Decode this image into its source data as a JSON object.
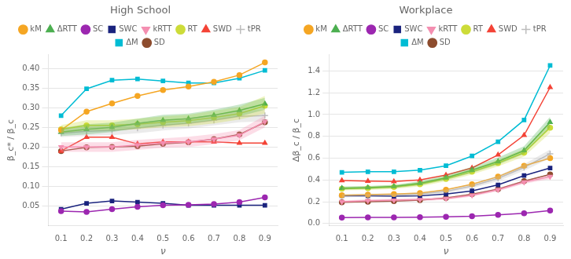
{
  "chart_data": [
    {
      "type": "line",
      "title": "High School",
      "x_label": "ν",
      "y_label": "β_c* / β_c",
      "x": [
        0.1,
        0.2,
        0.3,
        0.4,
        0.5,
        0.6,
        0.7,
        0.8,
        0.9
      ],
      "xlim": [
        0.05,
        0.95
      ],
      "xticks": [
        0.1,
        0.2,
        0.3,
        0.4,
        0.5,
        0.6,
        0.7,
        0.8,
        0.9
      ],
      "ylim": [
        0.0,
        0.435
      ],
      "yticks": [
        0.05,
        {
          "value": 0.1,
          "label": "0.10"
        },
        0.15,
        {
          "value": 0.2,
          "label": "0.20"
        },
        0.25,
        {
          "value": 0.3,
          "label": "0.30"
        },
        0.35,
        {
          "value": 0.4,
          "label": "0.40"
        }
      ],
      "grid": "y",
      "legend": "top",
      "series": [
        {
          "name": "kM",
          "color": "#f5a623",
          "marker": "circle",
          "values": [
            0.243,
            0.29,
            0.311,
            0.33,
            0.345,
            0.354,
            0.366,
            0.383,
            0.415
          ]
        },
        {
          "name": "ΔRTT",
          "color": "#4caf50",
          "marker": "triangle",
          "values": [
            0.238,
            0.245,
            0.25,
            0.26,
            0.268,
            0.272,
            0.281,
            0.293,
            0.31
          ],
          "lower": [
            0.228,
            0.232,
            0.238,
            0.248,
            0.254,
            0.26,
            0.268,
            0.278,
            0.295
          ],
          "upper": [
            0.248,
            0.258,
            0.262,
            0.272,
            0.282,
            0.285,
            0.295,
            0.308,
            0.325
          ]
        },
        {
          "name": "SC",
          "color": "#9c27b0",
          "marker": "circle",
          "values": [
            0.037,
            0.035,
            0.042,
            0.048,
            0.052,
            0.053,
            0.055,
            0.06,
            0.072
          ]
        },
        {
          "name": "SWC",
          "color": "#1a237e",
          "marker": "square",
          "values": [
            0.042,
            0.057,
            0.063,
            0.06,
            0.057,
            0.052,
            0.052,
            0.052,
            0.052
          ]
        },
        {
          "name": "kRTT",
          "color": "#f48fb1",
          "marker": "triangle_down",
          "values": [
            0.2,
            0.2,
            0.2,
            0.205,
            0.21,
            0.213,
            0.22,
            0.23,
            0.265
          ],
          "lower": [
            0.188,
            0.188,
            0.188,
            0.193,
            0.198,
            0.2,
            0.207,
            0.217,
            0.25
          ],
          "upper": [
            0.212,
            0.212,
            0.212,
            0.218,
            0.222,
            0.226,
            0.233,
            0.243,
            0.28
          ]
        },
        {
          "name": "RT",
          "color": "#cddc39",
          "marker": "circle",
          "values": [
            0.245,
            0.255,
            0.255,
            0.258,
            0.263,
            0.267,
            0.275,
            0.285,
            0.305
          ],
          "lower": [
            0.235,
            0.242,
            0.242,
            0.245,
            0.25,
            0.253,
            0.26,
            0.27,
            0.285
          ],
          "upper": [
            0.256,
            0.268,
            0.268,
            0.272,
            0.278,
            0.282,
            0.292,
            0.302,
            0.33
          ]
        },
        {
          "name": "SWD",
          "color": "#f44336",
          "marker": "triangle",
          "values": [
            0.19,
            0.225,
            0.225,
            0.208,
            0.213,
            0.213,
            0.213,
            0.21,
            0.21
          ]
        },
        {
          "name": "tPR",
          "color": "#bdbdbd",
          "marker": "plus",
          "values": [
            0.235,
            0.24,
            0.242,
            0.248,
            0.255,
            0.26,
            0.268,
            0.278,
            0.28
          ],
          "lower": [
            0.225,
            0.228,
            0.23,
            0.235,
            0.242,
            0.247,
            0.255,
            0.263,
            0.265
          ],
          "upper": [
            0.245,
            0.252,
            0.255,
            0.262,
            0.268,
            0.274,
            0.282,
            0.292,
            0.295
          ]
        },
        {
          "name": "ΔM",
          "color": "#00bcd4",
          "marker": "square",
          "values": [
            0.28,
            0.348,
            0.37,
            0.373,
            0.368,
            0.363,
            0.363,
            0.375,
            0.395
          ]
        },
        {
          "name": "SD",
          "color": "#8d4c2e",
          "marker": "circle",
          "values": [
            0.19,
            0.199,
            0.2,
            0.202,
            0.208,
            0.212,
            0.22,
            0.232,
            0.263
          ]
        }
      ]
    },
    {
      "type": "line",
      "title": "Workplace",
      "x_label": "ν",
      "y_label": "Δβ_c / β_c",
      "x": [
        0.1,
        0.2,
        0.3,
        0.4,
        0.5,
        0.6,
        0.7,
        0.8,
        0.9
      ],
      "xlim": [
        0.05,
        0.95
      ],
      "xticks": [
        0.1,
        0.2,
        0.3,
        0.4,
        0.5,
        0.6,
        0.7,
        0.8,
        0.9
      ],
      "ylim": [
        -0.02,
        1.55
      ],
      "yticks": [
        {
          "value": 0.0,
          "label": "0.0"
        },
        0.2,
        0.4,
        0.6,
        0.8,
        {
          "value": 1.0,
          "label": "1.0"
        },
        1.2,
        1.4
      ],
      "grid": "y",
      "legend": "top",
      "series": [
        {
          "name": "kM",
          "color": "#f5a623",
          "marker": "circle",
          "values": [
            0.26,
            0.265,
            0.27,
            0.28,
            0.31,
            0.36,
            0.43,
            0.53,
            0.6
          ]
        },
        {
          "name": "ΔRTT",
          "color": "#4caf50",
          "marker": "triangle",
          "values": [
            0.325,
            0.33,
            0.34,
            0.37,
            0.42,
            0.49,
            0.57,
            0.67,
            0.93
          ],
          "lower": [
            0.31,
            0.315,
            0.325,
            0.352,
            0.4,
            0.465,
            0.54,
            0.64,
            0.88
          ],
          "upper": [
            0.34,
            0.345,
            0.355,
            0.39,
            0.445,
            0.52,
            0.605,
            0.71,
            0.98
          ]
        },
        {
          "name": "SC",
          "color": "#9c27b0",
          "marker": "circle",
          "values": [
            0.055,
            0.057,
            0.057,
            0.058,
            0.062,
            0.068,
            0.08,
            0.095,
            0.12
          ]
        },
        {
          "name": "SWC",
          "color": "#1a237e",
          "marker": "square",
          "values": [
            0.255,
            0.255,
            0.25,
            0.255,
            0.27,
            0.3,
            0.355,
            0.44,
            0.51
          ]
        },
        {
          "name": "kRTT",
          "color": "#f48fb1",
          "marker": "triangle_down",
          "values": [
            0.2,
            0.21,
            0.215,
            0.22,
            0.23,
            0.26,
            0.31,
            0.38,
            0.43
          ],
          "lower": [
            0.188,
            0.198,
            0.203,
            0.208,
            0.217,
            0.247,
            0.296,
            0.365,
            0.41
          ],
          "upper": [
            0.212,
            0.222,
            0.227,
            0.232,
            0.243,
            0.273,
            0.324,
            0.395,
            0.45
          ]
        },
        {
          "name": "RT",
          "color": "#cddc39",
          "marker": "circle",
          "values": [
            0.32,
            0.325,
            0.335,
            0.36,
            0.41,
            0.475,
            0.555,
            0.65,
            0.88
          ],
          "lower": [
            0.305,
            0.308,
            0.318,
            0.34,
            0.388,
            0.45,
            0.525,
            0.615,
            0.83
          ],
          "upper": [
            0.335,
            0.342,
            0.352,
            0.38,
            0.432,
            0.5,
            0.585,
            0.685,
            0.93
          ]
        },
        {
          "name": "SWD",
          "color": "#f44336",
          "marker": "triangle",
          "values": [
            0.395,
            0.39,
            0.385,
            0.4,
            0.445,
            0.51,
            0.63,
            0.81,
            1.25
          ]
        },
        {
          "name": "tPR",
          "color": "#bdbdbd",
          "marker": "plus",
          "values": [
            0.255,
            0.26,
            0.26,
            0.27,
            0.295,
            0.345,
            0.415,
            0.515,
            0.64
          ],
          "lower": [
            0.24,
            0.245,
            0.245,
            0.255,
            0.278,
            0.325,
            0.39,
            0.485,
            0.6
          ],
          "upper": [
            0.27,
            0.275,
            0.275,
            0.285,
            0.312,
            0.365,
            0.44,
            0.545,
            0.68
          ]
        },
        {
          "name": "ΔM",
          "color": "#00bcd4",
          "marker": "square",
          "values": [
            0.47,
            0.475,
            0.475,
            0.49,
            0.53,
            0.62,
            0.75,
            0.95,
            1.45
          ]
        },
        {
          "name": "SD",
          "color": "#8d4c2e",
          "marker": "circle",
          "values": [
            0.195,
            0.2,
            0.205,
            0.215,
            0.235,
            0.268,
            0.315,
            0.39,
            0.45
          ]
        }
      ]
    }
  ]
}
